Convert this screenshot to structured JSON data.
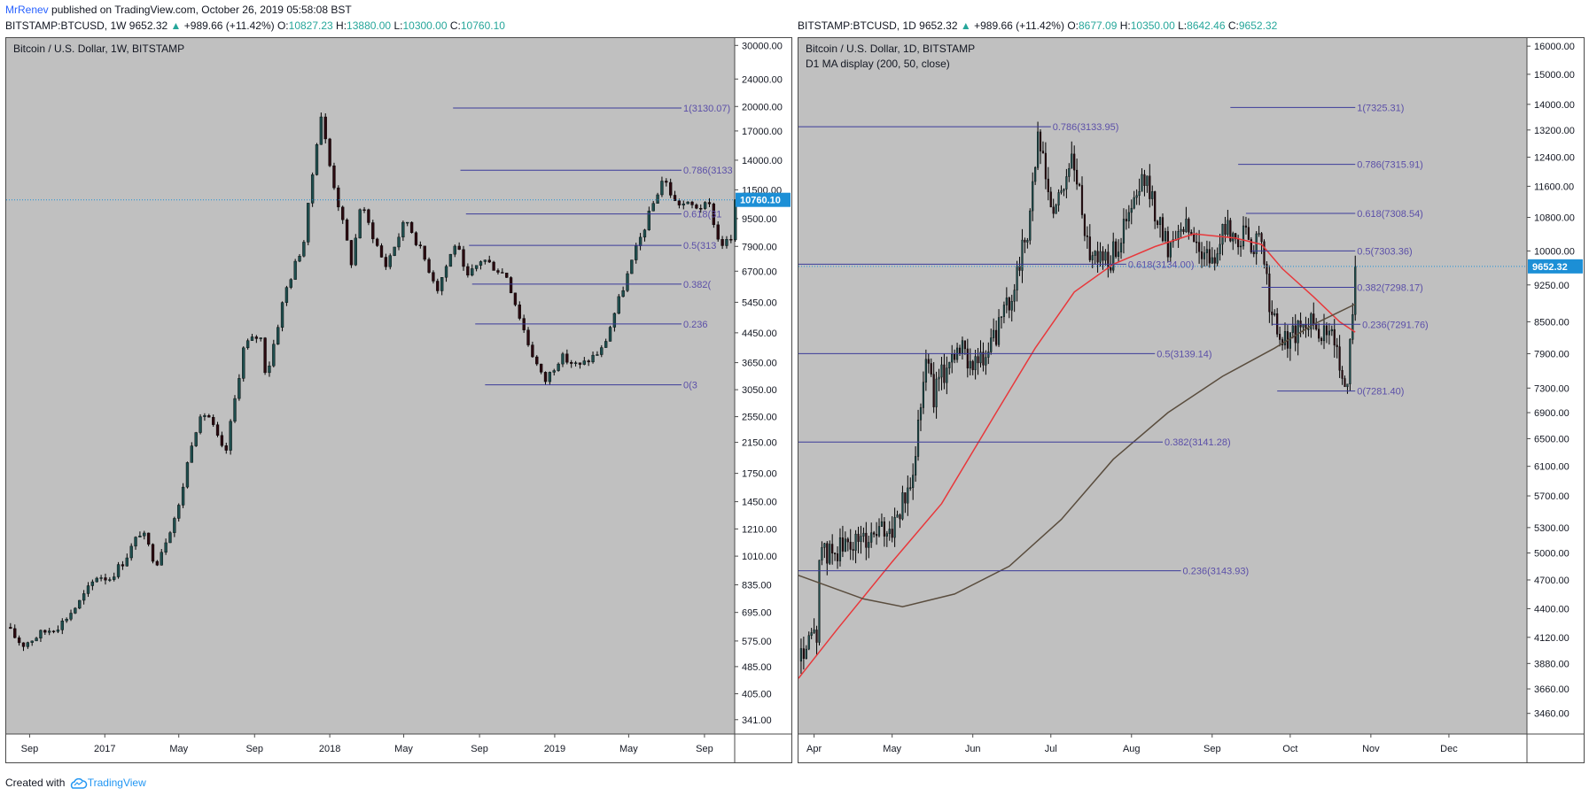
{
  "header": {
    "author": "MrRenev",
    "published_text": "published on TradingView.com, October 26, 2019 05:58:08 BST"
  },
  "footer": {
    "created_with": "Created with",
    "brand": "TradingView"
  },
  "colors": {
    "plot_bg": "#c0c0c0",
    "up_candle": "#1e4d4d",
    "down_candle": "#2a0a10",
    "fib_line": "#3b3b9a",
    "fib_label": "#5b4fa8",
    "price_tag": "#1c8fd6",
    "ma50": "#e8383b",
    "ma200": "#5a4d3e",
    "axis_text": "#131722"
  },
  "chart_data": [
    {
      "type": "candlestick",
      "symbol_line": {
        "symbol": "BITSTAMP:BTCUSD, 1W",
        "last": "9652.32",
        "change": "+989.66 (+11.42%)",
        "o_label": "O:",
        "o": "10827.23",
        "h_label": "H:",
        "h": "13880.00",
        "l_label": "L:",
        "l": "10300.00",
        "c_label": "C:",
        "c": "10760.10"
      },
      "title": "Bitcoin / U.S. Dollar, 1W, BITSTAMP",
      "subtitle": "",
      "y_scale": "log",
      "ylim": [
        310,
        31500
      ],
      "y_ticks": [
        "30000.00",
        "24000.00",
        "20000.00",
        "17000.00",
        "14000.00",
        "11500.00",
        "9500.00",
        "7900.00",
        "6700.00",
        "5450.00",
        "4450.00",
        "3650.00",
        "3050.00",
        "2550.00",
        "2150.00",
        "1750.00",
        "1450.00",
        "1210.00",
        "1010.00",
        "835.00",
        "695.00",
        "575.00",
        "485.00",
        "405.00",
        "341.00"
      ],
      "x_ticks": [
        {
          "label": "Sep",
          "date": "2016-09-01"
        },
        {
          "label": "2017",
          "date": "2017-01-01"
        },
        {
          "label": "May",
          "date": "2017-05-01"
        },
        {
          "label": "Sep",
          "date": "2017-09-01"
        },
        {
          "label": "2018",
          "date": "2018-01-01"
        },
        {
          "label": "May",
          "date": "2018-05-01"
        },
        {
          "label": "Sep",
          "date": "2018-09-01"
        },
        {
          "label": "2019",
          "date": "2019-01-01"
        },
        {
          "label": "May",
          "date": "2019-05-01"
        },
        {
          "label": "Sep",
          "date": "2019-09-01"
        }
      ],
      "xlim": [
        "2016-07-25",
        "2019-10-20"
      ],
      "last_price_tag": "10760.10",
      "last_price_value": 10760.1,
      "price_path": [
        [
          "2016-07-25",
          630
        ],
        [
          "2016-08-20",
          560
        ],
        [
          "2016-09-20",
          605
        ],
        [
          "2016-10-20",
          640
        ],
        [
          "2016-11-20",
          740
        ],
        [
          "2016-12-20",
          890
        ],
        [
          "2017-01-08",
          870
        ],
        [
          "2017-02-01",
          980
        ],
        [
          "2017-03-01",
          1200
        ],
        [
          "2017-03-25",
          960
        ],
        [
          "2017-05-01",
          1400
        ],
        [
          "2017-05-25",
          2300
        ],
        [
          "2017-06-15",
          2650
        ],
        [
          "2017-07-15",
          1950
        ],
        [
          "2017-08-15",
          4100
        ],
        [
          "2017-09-10",
          4400
        ],
        [
          "2017-09-20",
          3300
        ],
        [
          "2017-10-20",
          5800
        ],
        [
          "2017-11-20",
          8200
        ],
        [
          "2017-12-17",
          19300
        ],
        [
          "2018-01-01",
          13500
        ],
        [
          "2018-02-06",
          7000
        ],
        [
          "2018-02-20",
          10500
        ],
        [
          "2018-04-01",
          6900
        ],
        [
          "2018-05-05",
          9500
        ],
        [
          "2018-06-25",
          6000
        ],
        [
          "2018-07-25",
          8200
        ],
        [
          "2018-08-10",
          6300
        ],
        [
          "2018-09-05",
          7300
        ],
        [
          "2018-10-15",
          6500
        ],
        [
          "2018-11-20",
          4100
        ],
        [
          "2018-12-15",
          3200
        ],
        [
          "2019-01-10",
          3800
        ],
        [
          "2019-02-10",
          3550
        ],
        [
          "2019-03-20",
          4000
        ],
        [
          "2019-04-10",
          5200
        ],
        [
          "2019-05-15",
          7900
        ],
        [
          "2019-06-26",
          12500
        ],
        [
          "2019-07-15",
          10600
        ],
        [
          "2019-08-15",
          10300
        ],
        [
          "2019-09-10",
          10300
        ],
        [
          "2019-09-25",
          8000
        ],
        [
          "2019-10-20",
          8300
        ],
        [
          "2019-10-26",
          10760
        ]
      ],
      "fib_levels": [
        {
          "label": "1(3130.07)",
          "price": 19800,
          "x_start": "2018-07-20"
        },
        {
          "label": "0.786(3133",
          "price": 13100,
          "x_start": "2018-08-01"
        },
        {
          "label": "0.618(31",
          "price": 9800,
          "x_start": "2018-08-10"
        },
        {
          "label": "0.5(313",
          "price": 7950,
          "x_start": "2018-08-15"
        },
        {
          "label": "0.382(",
          "price": 6150,
          "x_start": "2018-08-20"
        },
        {
          "label": "0.236",
          "price": 4720,
          "x_start": "2018-08-25"
        },
        {
          "label": "0(3",
          "price": 3150,
          "x_start": "2018-09-10"
        }
      ]
    },
    {
      "type": "candlestick",
      "symbol_line": {
        "symbol": "BITSTAMP:BTCUSD, 1D",
        "last": "9652.32",
        "change": "+989.66 (+11.42%)",
        "o_label": "O:",
        "o": "8677.09",
        "h_label": "H:",
        "h": "10350.00",
        "l_label": "L:",
        "l": "8642.46",
        "c_label": "C:",
        "c": "9652.32"
      },
      "title": "Bitcoin / U.S. Dollar, 1D, BITSTAMP",
      "subtitle": "D1 MA display (200, 50, close)",
      "y_scale": "log",
      "ylim": [
        3300,
        16300
      ],
      "y_ticks": [
        "16000.00",
        "15000.00",
        "14000.00",
        "13200.00",
        "12400.00",
        "11600.00",
        "10800.00",
        "10000.00",
        "9250.00",
        "8500.00",
        "7900.00",
        "7300.00",
        "6900.00",
        "6500.00",
        "6100.00",
        "5700.00",
        "5300.00",
        "5000.00",
        "4700.00",
        "4400.00",
        "4120.00",
        "3880.00",
        "3660.00",
        "3460.00"
      ],
      "x_ticks": [
        {
          "label": "Apr",
          "date": "2019-04-01"
        },
        {
          "label": "May",
          "date": "2019-05-01"
        },
        {
          "label": "Jun",
          "date": "2019-06-01"
        },
        {
          "label": "Jul",
          "date": "2019-07-01"
        },
        {
          "label": "Aug",
          "date": "2019-08-01"
        },
        {
          "label": "Sep",
          "date": "2019-09-01"
        },
        {
          "label": "Oct",
          "date": "2019-10-01"
        },
        {
          "label": "Nov",
          "date": "2019-11-01"
        },
        {
          "label": "Dec",
          "date": "2019-12-01"
        }
      ],
      "xlim": [
        "2019-03-26",
        "2019-12-31"
      ],
      "last_price_tag": "9652.32",
      "last_price_value": 9652.32,
      "price_path": [
        [
          "2019-03-26",
          3900
        ],
        [
          "2019-04-02",
          4150
        ],
        [
          "2019-04-03",
          4950
        ],
        [
          "2019-04-15",
          5100
        ],
        [
          "2019-05-01",
          5300
        ],
        [
          "2019-05-08",
          5800
        ],
        [
          "2019-05-14",
          7900
        ],
        [
          "2019-05-17",
          7200
        ],
        [
          "2019-05-25",
          8000
        ],
        [
          "2019-06-05",
          7700
        ],
        [
          "2019-06-15",
          8900
        ],
        [
          "2019-06-22",
          10500
        ],
        [
          "2019-06-26",
          12900
        ],
        [
          "2019-07-02",
          10800
        ],
        [
          "2019-07-09",
          12400
        ],
        [
          "2019-07-16",
          10000
        ],
        [
          "2019-07-24",
          9800
        ],
        [
          "2019-08-06",
          11800
        ],
        [
          "2019-08-15",
          10100
        ],
        [
          "2019-08-20",
          10700
        ],
        [
          "2019-09-01",
          9700
        ],
        [
          "2019-09-06",
          10500
        ],
        [
          "2019-09-20",
          10100
        ],
        [
          "2019-09-24",
          8600
        ],
        [
          "2019-09-28",
          8100
        ],
        [
          "2019-10-10",
          8500
        ],
        [
          "2019-10-18",
          8100
        ],
        [
          "2019-10-23",
          7400
        ],
        [
          "2019-10-26",
          9652
        ]
      ],
      "ma50": [
        [
          "2019-03-26",
          3750
        ],
        [
          "2019-04-10",
          4200
        ],
        [
          "2019-05-01",
          4900
        ],
        [
          "2019-05-20",
          5600
        ],
        [
          "2019-06-10",
          6900
        ],
        [
          "2019-06-25",
          8000
        ],
        [
          "2019-07-10",
          9100
        ],
        [
          "2019-07-25",
          9700
        ],
        [
          "2019-08-10",
          10100
        ],
        [
          "2019-08-25",
          10400
        ],
        [
          "2019-09-10",
          10300
        ],
        [
          "2019-09-20",
          10150
        ],
        [
          "2019-09-28",
          9600
        ],
        [
          "2019-10-10",
          9000
        ],
        [
          "2019-10-20",
          8500
        ],
        [
          "2019-10-26",
          8300
        ]
      ],
      "ma200": [
        [
          "2019-03-26",
          4750
        ],
        [
          "2019-04-20",
          4500
        ],
        [
          "2019-05-05",
          4420
        ],
        [
          "2019-05-25",
          4550
        ],
        [
          "2019-06-15",
          4850
        ],
        [
          "2019-07-05",
          5400
        ],
        [
          "2019-07-25",
          6200
        ],
        [
          "2019-08-15",
          6900
        ],
        [
          "2019-09-05",
          7500
        ],
        [
          "2019-09-25",
          8000
        ],
        [
          "2019-10-10",
          8450
        ],
        [
          "2019-10-26",
          8850
        ]
      ],
      "fib_levels": [
        {
          "label": "1(7325.31)",
          "price": 13900,
          "x_start": "2019-09-08",
          "x_end": "2019-10-26"
        },
        {
          "label": "0.786(7315.91)",
          "price": 12200,
          "x_start": "2019-09-11",
          "x_end": "2019-10-26"
        },
        {
          "label": "0.618(7308.54)",
          "price": 10900,
          "x_start": "2019-09-14",
          "x_end": "2019-10-26"
        },
        {
          "label": "0.5(7303.36)",
          "price": 10000,
          "x_start": "2019-09-16",
          "x_end": "2019-10-26"
        },
        {
          "label": "0.382(7298.17)",
          "price": 9200,
          "x_start": "2019-09-20",
          "x_end": "2019-10-26"
        },
        {
          "label": "0.236(7291.76)",
          "price": 8450,
          "x_start": "2019-09-24",
          "x_end": "2019-10-28"
        },
        {
          "label": "0(7281.40)",
          "price": 7250,
          "x_start": "2019-09-26",
          "x_end": "2019-10-26"
        },
        {
          "label": "0.786(3133.95)",
          "price": 13300,
          "x_start": "2019-03-26",
          "x_end": "2019-07-01"
        },
        {
          "label": "0.618(3134.00)",
          "price": 9700,
          "x_start": "2019-03-26",
          "x_end": "2019-07-30"
        },
        {
          "label": "0.5(3139.14)",
          "price": 7900,
          "x_start": "2019-03-26",
          "x_end": "2019-08-10"
        },
        {
          "label": "0.382(3141.28)",
          "price": 6450,
          "x_start": "2019-03-26",
          "x_end": "2019-08-13"
        },
        {
          "label": "0.236(3143.93)",
          "price": 4800,
          "x_start": "2019-03-26",
          "x_end": "2019-08-20"
        }
      ]
    }
  ]
}
